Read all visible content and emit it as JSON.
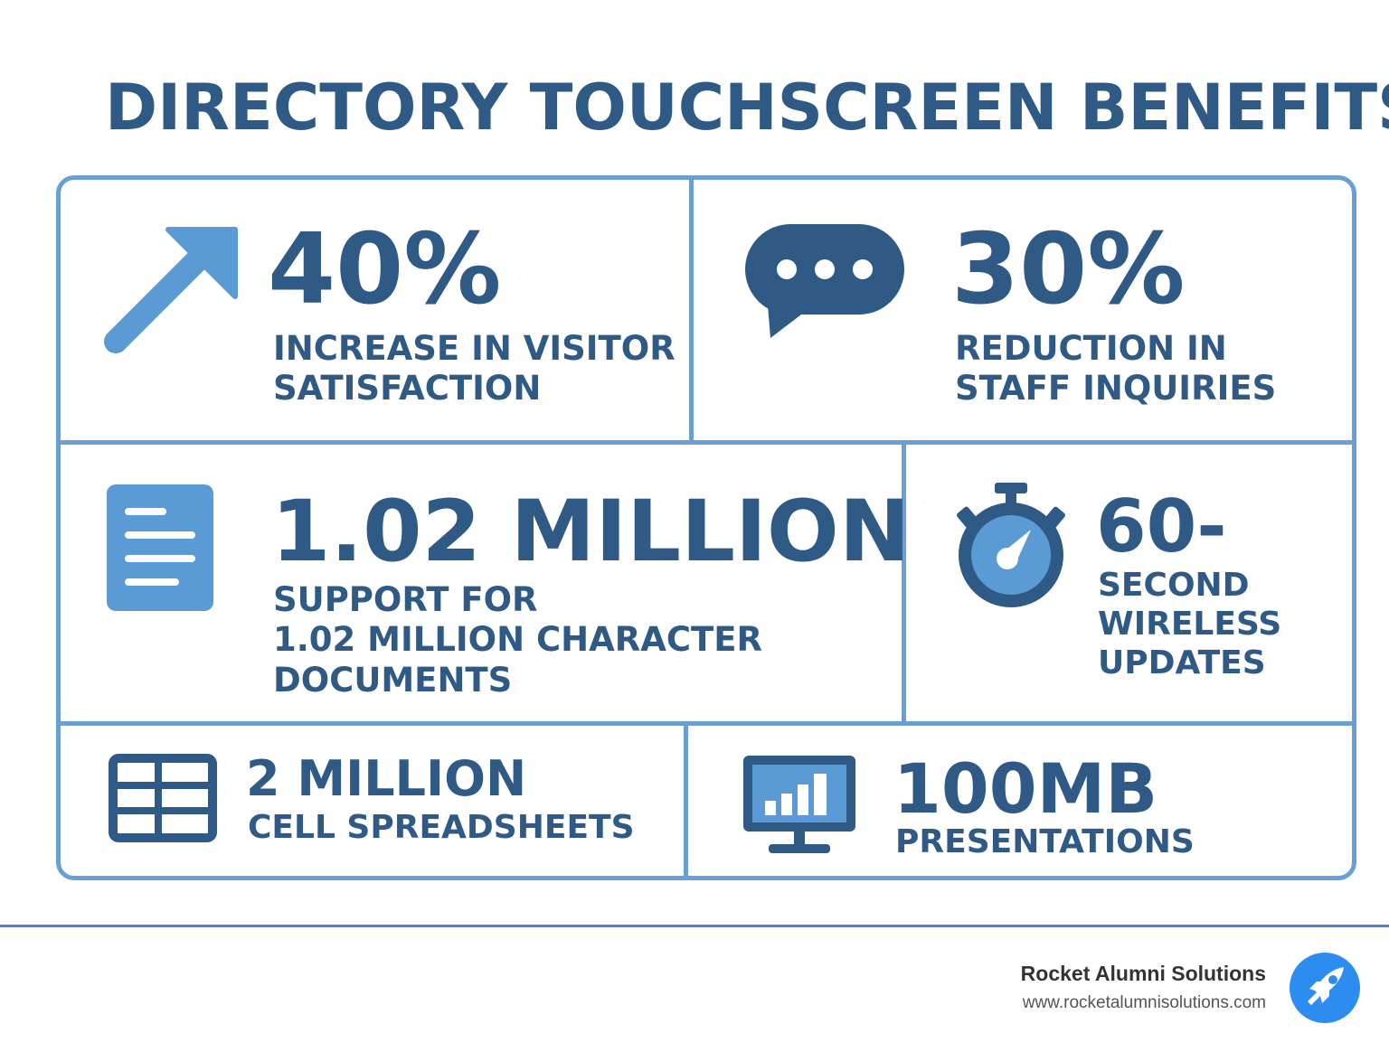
{
  "title": "DIRECTORY TOUCHSCREEN BENEFITS",
  "colors": {
    "primary": "#2f5a85",
    "accent": "#5b9bd5",
    "border": "#6a9fd6"
  },
  "cards": [
    {
      "icon": "arrow-up-right-icon",
      "value": "40%",
      "caption": [
        "INCREASE IN VISITOR",
        "SATISFACTION"
      ]
    },
    {
      "icon": "chat-bubble-icon",
      "value": "30%",
      "caption": [
        "REDUCTION IN",
        "STAFF INQUIRIES"
      ]
    },
    {
      "icon": "document-icon",
      "value": "1.02 MILLION",
      "caption": [
        "SUPPORT FOR",
        "1.02 MILLION CHARACTER",
        "DOCUMENTS"
      ]
    },
    {
      "icon": "stopwatch-icon",
      "value": "60-",
      "caption": [
        "SECOND",
        "WIRELESS",
        "UPDATES"
      ]
    },
    {
      "icon": "spreadsheet-icon",
      "value": "2 MILLION",
      "caption": [
        "CELL SPREADSHEETS"
      ]
    },
    {
      "icon": "presentation-monitor-icon",
      "value": "100MB",
      "caption": [
        "PRESENTATIONS"
      ]
    }
  ],
  "footer": {
    "brand_name": "Rocket Alumni Solutions",
    "url": "www.rocketalumnisolutions.com",
    "logo_icon": "rocket-icon"
  }
}
